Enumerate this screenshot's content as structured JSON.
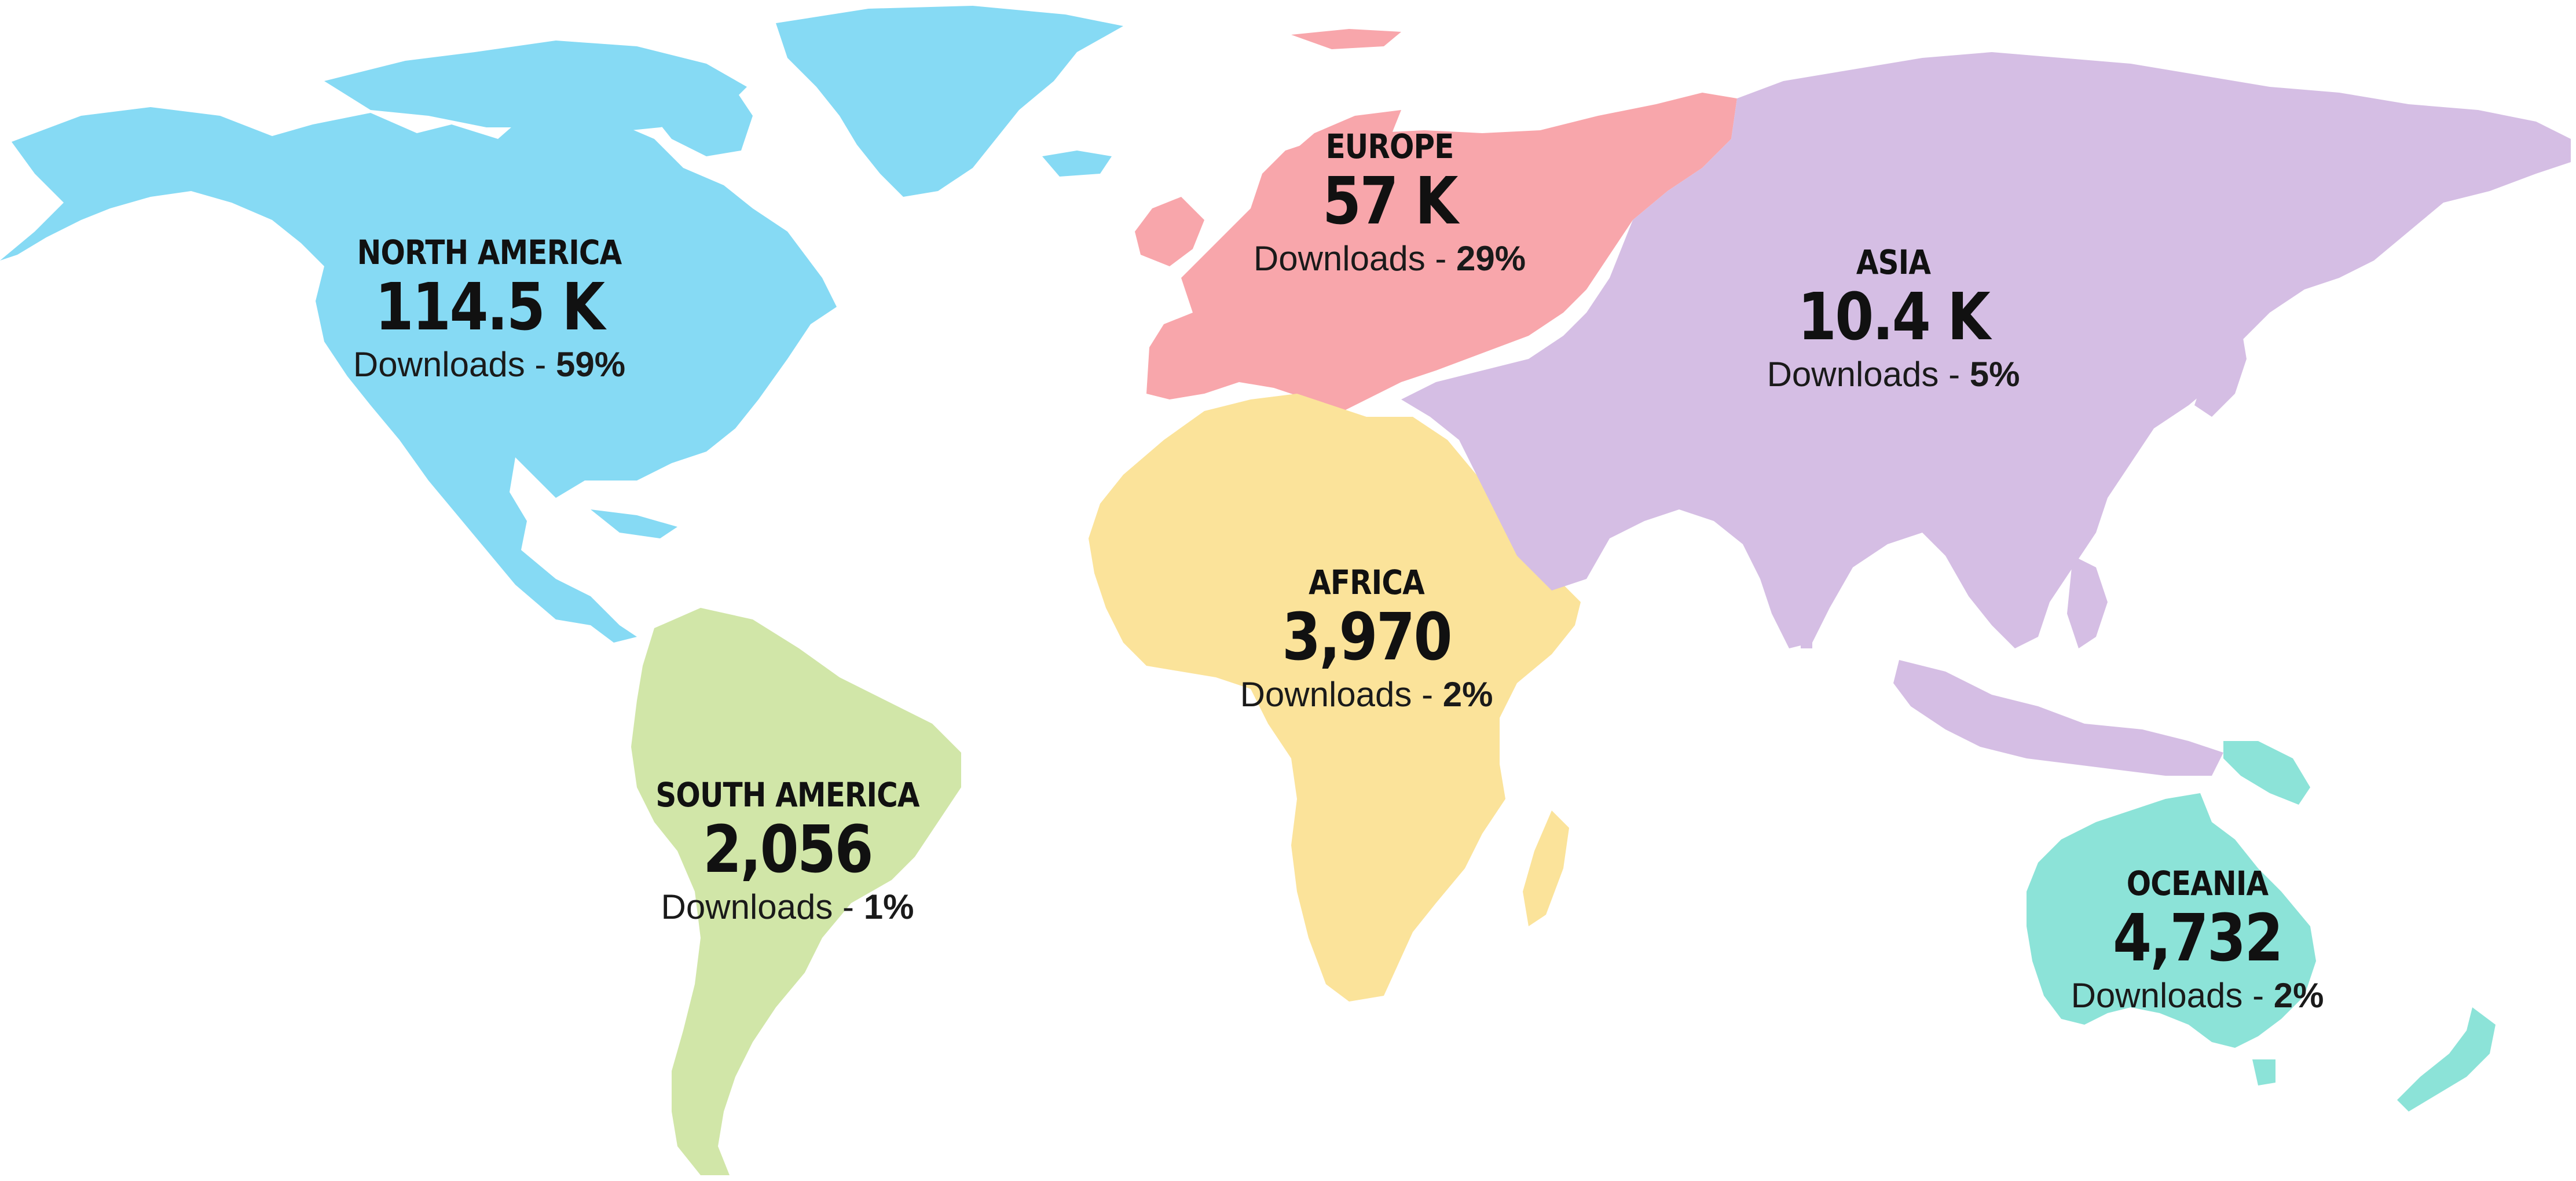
{
  "map": {
    "colors": {
      "north_america": "#86DAF4",
      "south_america": "#D1E6A8",
      "europe": "#F8A6AB",
      "africa": "#FBE39A",
      "asia": "#D5BEE4",
      "oceania": "#8CE3D8"
    },
    "regions": [
      {
        "id": "north-america",
        "name": "NORTH AMERICA",
        "value": "114.5 K",
        "stat_label": "Downloads - ",
        "percent": "59%"
      },
      {
        "id": "europe",
        "name": "EUROPE",
        "value": "57 K",
        "stat_label": "Downloads - ",
        "percent": "29%"
      },
      {
        "id": "asia",
        "name": "ASIA",
        "value": "10.4 K",
        "stat_label": "Downloads - ",
        "percent": "5%"
      },
      {
        "id": "africa",
        "name": "AFRICA",
        "value": "3,970",
        "stat_label": "Downloads - ",
        "percent": "2%"
      },
      {
        "id": "south-america",
        "name": "SOUTH AMERICA",
        "value": "2,056",
        "stat_label": "Downloads - ",
        "percent": "1%"
      },
      {
        "id": "oceania",
        "name": "OCEANIA",
        "value": "4,732",
        "stat_label": "Downloads - ",
        "percent": "2%"
      }
    ]
  }
}
